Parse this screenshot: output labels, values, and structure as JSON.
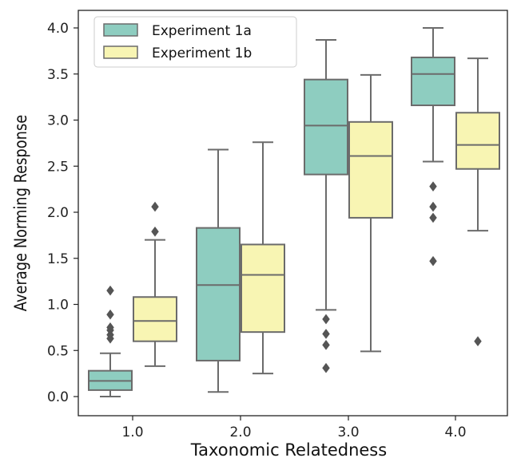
{
  "chart_data": {
    "type": "box",
    "xlabel": "Taxonomic Relatedness",
    "ylabel": "Average Norming Response",
    "categories": [
      "1.0",
      "2.0",
      "3.0",
      "4.0"
    ],
    "ylim": [
      -0.2,
      4.2
    ],
    "yticks": [
      "0.0",
      "0.5",
      "1.0",
      "1.5",
      "2.0",
      "2.5",
      "3.0",
      "3.5",
      "4.0"
    ],
    "ytick_values": [
      0,
      0.5,
      1.0,
      1.5,
      2.0,
      2.5,
      3.0,
      3.5,
      4.0
    ],
    "grid": false,
    "legend_position": "top-left",
    "colors": {
      "Experiment 1a": "#8ecdc0",
      "Experiment 1b": "#f8f5b3",
      "edge": "#6b6b6b"
    },
    "series": [
      {
        "name": "Experiment 1a",
        "boxes": [
          {
            "whisker_low": 0.0,
            "q1": 0.07,
            "median": 0.17,
            "q3": 0.28,
            "whisker_high": 0.47,
            "outliers": [
              0.63,
              0.67,
              0.72,
              0.75,
              0.89,
              1.15
            ]
          },
          {
            "whisker_low": 0.05,
            "q1": 0.39,
            "median": 1.21,
            "q3": 1.83,
            "whisker_high": 2.68,
            "outliers": []
          },
          {
            "whisker_low": 0.94,
            "q1": 2.41,
            "median": 2.94,
            "q3": 3.44,
            "whisker_high": 3.87,
            "outliers": [
              0.31,
              0.56,
              0.68,
              0.84
            ]
          },
          {
            "whisker_low": 2.55,
            "q1": 3.16,
            "median": 3.5,
            "q3": 3.68,
            "whisker_high": 4.0,
            "outliers": [
              1.47,
              1.94,
              2.06,
              2.28
            ]
          }
        ]
      },
      {
        "name": "Experiment 1b",
        "boxes": [
          {
            "whisker_low": 0.33,
            "q1": 0.6,
            "median": 0.82,
            "q3": 1.08,
            "whisker_high": 1.7,
            "outliers": [
              1.79,
              2.06
            ]
          },
          {
            "whisker_low": 0.25,
            "q1": 0.7,
            "median": 1.32,
            "q3": 1.65,
            "whisker_high": 2.76,
            "outliers": []
          },
          {
            "whisker_low": 0.49,
            "q1": 1.94,
            "median": 2.61,
            "q3": 2.98,
            "whisker_high": 3.49,
            "outliers": []
          },
          {
            "whisker_low": 1.8,
            "q1": 2.47,
            "median": 2.73,
            "q3": 3.08,
            "whisker_high": 3.67,
            "outliers": [
              0.6
            ]
          }
        ]
      }
    ]
  }
}
